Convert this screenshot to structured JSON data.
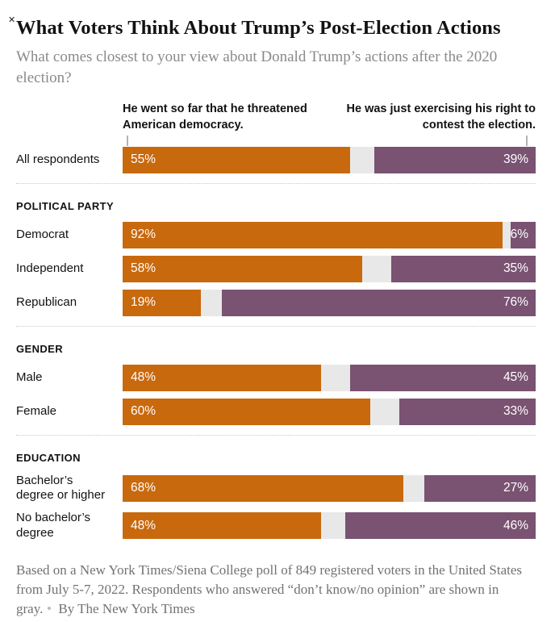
{
  "window": {
    "close_icon": "✕"
  },
  "header": {
    "title": "What Voters Think About Trump’s Post-Election Actions",
    "subtitle": "What comes closest to your view about Donald Trump’s actions after the 2020 election?"
  },
  "colors": {
    "threatened_orange": "#C8690E",
    "exercising_purple": "#7A5272",
    "no_opinion_gray": "#E8E8E8"
  },
  "chart_data": {
    "type": "bar",
    "variant": "horizontal-100%-stacked",
    "title": "What Voters Think About Trump’s Post-Election Actions",
    "question": "What comes closest to your view about Donald Trump’s actions after the 2020 election?",
    "xlim": [
      0,
      100
    ],
    "units": "percent",
    "series": [
      {
        "name": "He went so far that he threatened American democracy.",
        "color": "#C8690E",
        "label_position": "left-inside"
      },
      {
        "name": "Don’t know / no opinion",
        "color": "#E8E8E8",
        "label_position": "none"
      },
      {
        "name": "He was just exercising his right to contest the election.",
        "color": "#7A5272",
        "label_position": "right-inside"
      }
    ],
    "legend": {
      "left": "He went so far that he threatened American democracy.",
      "right": "He was just exercising his right to contest the election."
    },
    "groups": [
      {
        "section": "",
        "rows": [
          {
            "label": "All respondents",
            "threatened_pct": 55,
            "exercising_pct": 39,
            "no_opinion_pct": 6
          }
        ]
      },
      {
        "section": "POLITICAL PARTY",
        "rows": [
          {
            "label": "Democrat",
            "threatened_pct": 92,
            "exercising_pct": 6,
            "no_opinion_pct": 2
          },
          {
            "label": "Independent",
            "threatened_pct": 58,
            "exercising_pct": 35,
            "no_opinion_pct": 7
          },
          {
            "label": "Republican",
            "threatened_pct": 19,
            "exercising_pct": 76,
            "no_opinion_pct": 5
          }
        ]
      },
      {
        "section": "GENDER",
        "rows": [
          {
            "label": "Male",
            "threatened_pct": 48,
            "exercising_pct": 45,
            "no_opinion_pct": 7
          },
          {
            "label": "Female",
            "threatened_pct": 60,
            "exercising_pct": 33,
            "no_opinion_pct": 7
          }
        ]
      },
      {
        "section": "EDUCATION",
        "rows": [
          {
            "label": "Bachelor’s degree or higher",
            "threatened_pct": 68,
            "exercising_pct": 27,
            "no_opinion_pct": 5
          },
          {
            "label": "No bachelor’s degree",
            "threatened_pct": 48,
            "exercising_pct": 46,
            "no_opinion_pct": 6
          }
        ]
      }
    ]
  },
  "footer": {
    "note": "Based on a New York Times/Siena College poll of 849 registered voters in the United States from July 5-7, 2022. Respondents who answered “don’t know/no opinion” are shown in gray.",
    "byline": "By The New York Times"
  }
}
